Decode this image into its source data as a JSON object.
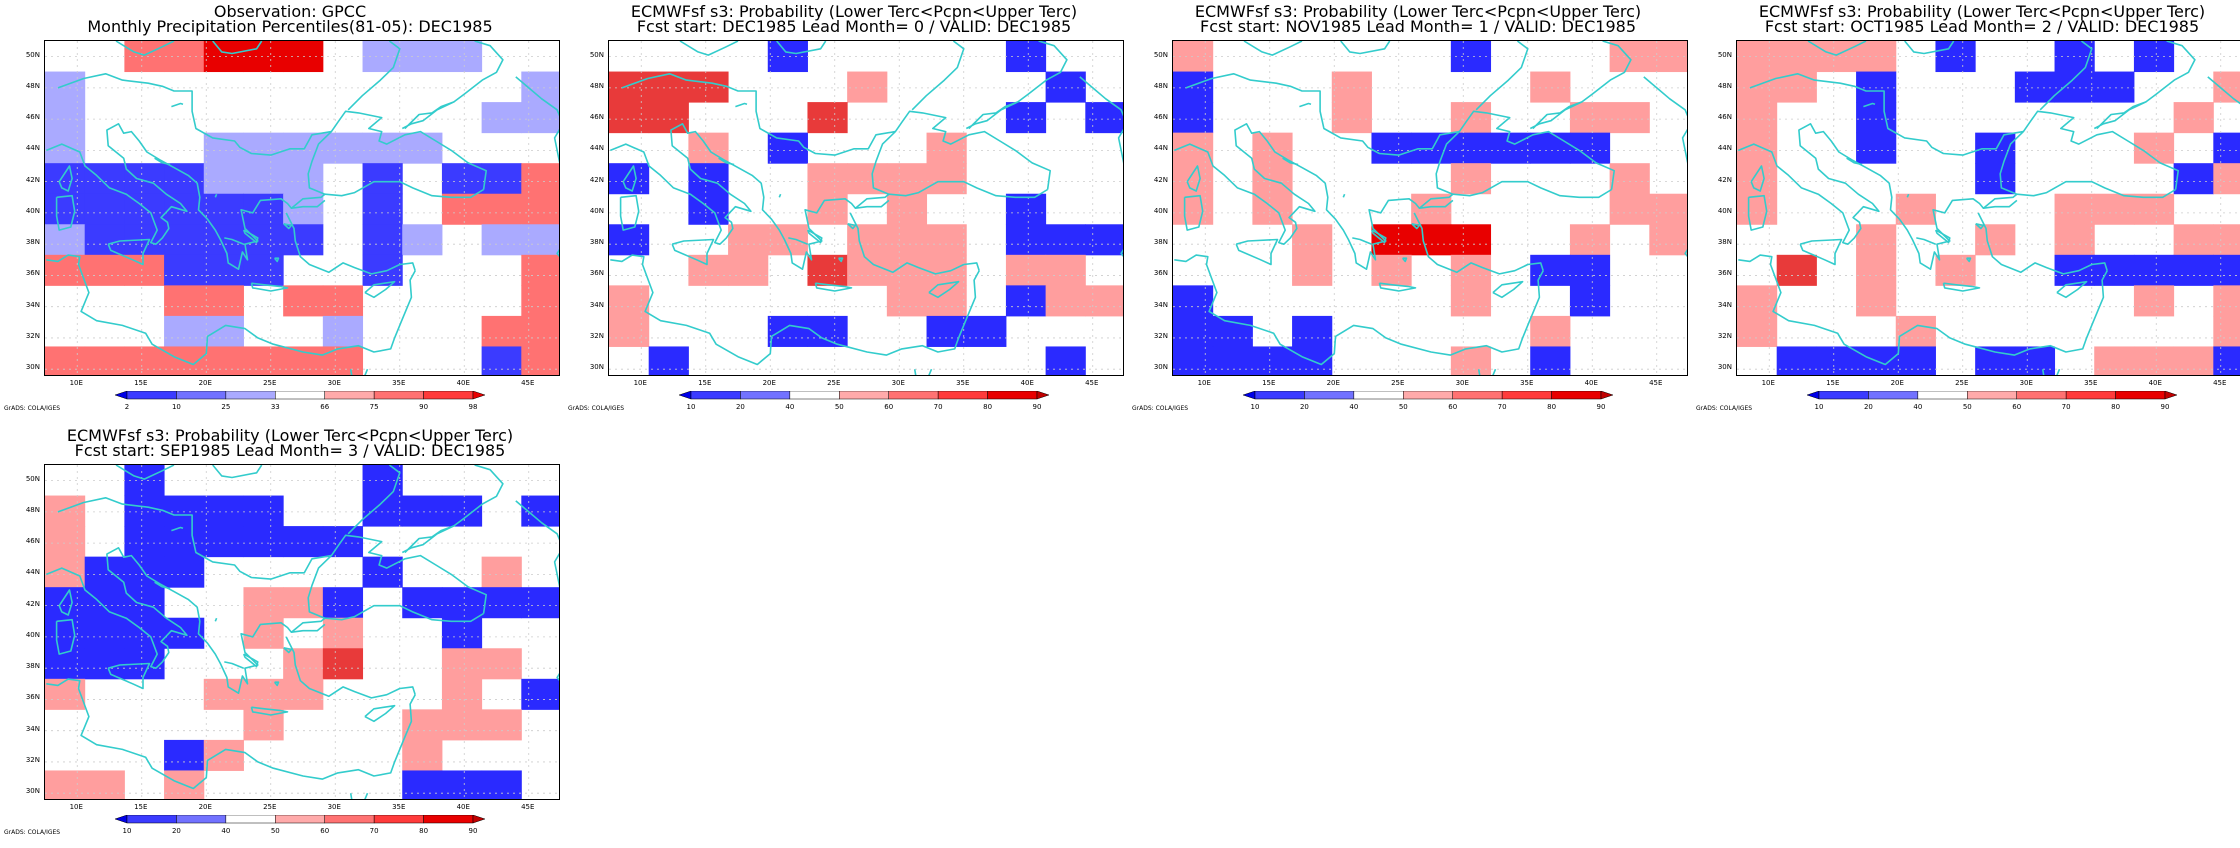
{
  "lon_ticks": [
    "10E",
    "15E",
    "20E",
    "25E",
    "30E",
    "35E",
    "40E",
    "45E"
  ],
  "lat_ticks": [
    "30N",
    "32N",
    "34N",
    "36N",
    "38N",
    "40N",
    "42N",
    "44N",
    "46N",
    "48N",
    "50N"
  ],
  "credit": "GrADS: COLA/IGES",
  "colors": {
    "coast": "#33cccc",
    "grid": "#cccccc",
    "frame": "#000000"
  },
  "palettes": {
    "observation": {
      "labels": [
        "2",
        "10",
        "25",
        "33",
        "66",
        "75",
        "90",
        "98"
      ],
      "colors": [
        "#0000e8",
        "#3b3bff",
        "#7272ff",
        "#aaaaff",
        "#ffffff",
        "#ffaaaa",
        "#ff7272",
        "#ff3b3b",
        "#e80000"
      ]
    },
    "forecast": {
      "labels": [
        "10",
        "20",
        "40",
        "50",
        "60",
        "70",
        "80",
        "90"
      ],
      "colors": [
        "#0000e8",
        "#3b3bff",
        "#7272ff",
        "#ffffff",
        "#ffaaaa",
        "#ff7272",
        "#ff3b3b",
        "#e80000",
        "#c00000"
      ]
    }
  },
  "panels": [
    {
      "id": "obs",
      "title_line1": "Observation: GPCC",
      "title_line2": "Monthly Precipitation Percentiles(81-05): DEC1985",
      "palette": "observation",
      "grid_rows_north_to_south": [
        "..66000.444..",
        "3...........3",
        "3..........33",
        "3...333333...",
        "2222333.2.221",
        "2222223.2.111",
        "3222222.23.33",
        "111222..2...1",
        "...11.11....1",
        "...33..3...11",
        "11111111...21"
      ],
      "cell_key": {
        ".": "none",
        "0": "#e80000",
        "1": "#ff7272",
        "2": "#3b3bff",
        "3": "#aaaaff",
        "4": "#aaaaff",
        "6": "#ff7272"
      }
    },
    {
      "id": "lead0",
      "title_line1": "ECMWFsf s3: Probability (Lower Terc<Pcpn<Upper Terc)",
      "title_line2": "Fcst start: DEC1985  Lead Month= 0 / VALID: DEC1985",
      "palette": "forecast",
      "grid_rows_north_to_south": [
        "....2.....B..",
        "AAA...C....B.",
        "AA...A....B.B",
        "..C.B...C....",
        "B.B..CCCC....",
        "..B..C.C..B..",
        "B..CC.CCC.BBB",
        "..CC.ACCC.CC.",
        "C......CC.BCC",
        "C...BB..BB...",
        ".B.........B."
      ],
      "cell_key": {
        ".": "none",
        "A": "#e83a3a",
        "B": "#2a2aff",
        "C": "#ff9e9e",
        "2": "#2a2aff"
      }
    },
    {
      "id": "lead1",
      "title_line1": "ECMWFsf s3: Probability (Lower Terc<Pcpn<Upper Terc)",
      "title_line2": "Fcst start: NOV1985  Lead Month= 1 / VALID: DEC1985",
      "palette": "forecast",
      "grid_rows_north_to_south": [
        "C......B...CC",
        "B...C....C...",
        "B...C..C..CC.",
        "C.C..BBBBBB..",
        "C.C....C...C.",
        "C.C...C....CC",
        "...C.AAA..C.C",
        "...C.C.C.BB..",
        "B......C..B..",
        "BB.B.....C...",
        "BBBB...C.B..."
      ],
      "cell_key": {
        ".": "none",
        "A": "#e80000",
        "B": "#2a2aff",
        "C": "#ff9e9e"
      }
    },
    {
      "id": "lead2",
      "title_line1": "ECMWFsf s3: Probability (Lower Terc<Pcpn<Upper Terc)",
      "title_line2": "Fcst start: OCT1985  Lead Month= 2 / VALID: DEC1985",
      "palette": "forecast",
      "grid_rows_north_to_south": [
        "CCCC.B..B.B..",
        "CC.B...BBB..C",
        "C..B.......C.",
        "C..B..B...C.B",
        "C.....B....BC",
        "C...C...CCC..",
        "...C..C.C..CC",
        ".A.C.C..BBBBB",
        "C..C......C.C",
        "C...C.......C",
        ".BBBB.BB.CCCB"
      ],
      "cell_key": {
        ".": "none",
        "A": "#e83a3a",
        "B": "#2a2aff",
        "C": "#ff9e9e"
      }
    },
    {
      "id": "lead3",
      "title_line1": "ECMWFsf s3: Probability (Lower Terc<Pcpn<Upper Terc)",
      "title_line2": "Fcst start: SEP1985  Lead Month= 3 / VALID: DEC1985",
      "palette": "forecast",
      "grid_rows_north_to_south": [
        "..B.....B....",
        "C.BBBB..BBB.B",
        "C.BBBBBB.....",
        "CBBB....B..C.",
        "BBB..CCB.BBBB",
        "BBBB.C.C..B..",
        "BBB...CA..CC.",
        "C...CCC...C.B",
        ".....C...CCC.",
        "...BC....C...",
        "CC.C.....BBB."
      ],
      "cell_key": {
        ".": "none",
        "A": "#e83a3a",
        "B": "#2a2aff",
        "C": "#ff9e9e"
      }
    }
  ]
}
